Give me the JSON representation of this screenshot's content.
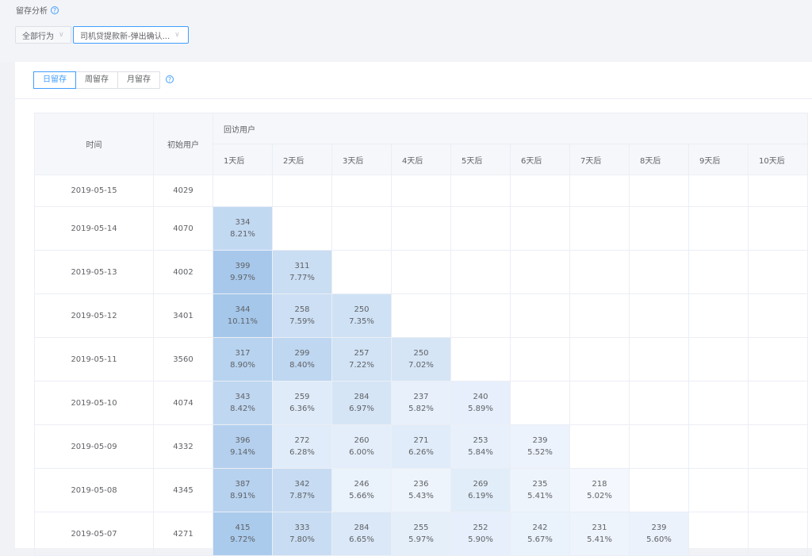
{
  "header": {
    "title": "留存分析"
  },
  "filters": {
    "behavior": "全部行为",
    "event": "司机贷提款新-弹出确认..."
  },
  "tabs": [
    {
      "label": "日留存",
      "active": true
    },
    {
      "label": "周留存",
      "active": false
    },
    {
      "label": "月留存",
      "active": false
    }
  ],
  "table": {
    "col_time": "时间",
    "col_initial": "初始用户",
    "col_returning": "回访用户",
    "days": [
      "1天后",
      "2天后",
      "3天后",
      "4天后",
      "5天后",
      "6天后",
      "7天后",
      "8天后",
      "9天后",
      "10天后"
    ],
    "rows": [
      {
        "date": "2019-05-15",
        "initial": "4029",
        "cells": []
      },
      {
        "date": "2019-05-14",
        "initial": "4070",
        "cells": [
          {
            "count": "334",
            "pct": "8.21%"
          }
        ]
      },
      {
        "date": "2019-05-13",
        "initial": "4002",
        "cells": [
          {
            "count": "399",
            "pct": "9.97%"
          },
          {
            "count": "311",
            "pct": "7.77%"
          }
        ]
      },
      {
        "date": "2019-05-12",
        "initial": "3401",
        "cells": [
          {
            "count": "344",
            "pct": "10.11%"
          },
          {
            "count": "258",
            "pct": "7.59%"
          },
          {
            "count": "250",
            "pct": "7.35%"
          }
        ]
      },
      {
        "date": "2019-05-11",
        "initial": "3560",
        "cells": [
          {
            "count": "317",
            "pct": "8.90%"
          },
          {
            "count": "299",
            "pct": "8.40%"
          },
          {
            "count": "257",
            "pct": "7.22%"
          },
          {
            "count": "250",
            "pct": "7.02%"
          }
        ]
      },
      {
        "date": "2019-05-10",
        "initial": "4074",
        "cells": [
          {
            "count": "343",
            "pct": "8.42%"
          },
          {
            "count": "259",
            "pct": "6.36%"
          },
          {
            "count": "284",
            "pct": "6.97%"
          },
          {
            "count": "237",
            "pct": "5.82%"
          },
          {
            "count": "240",
            "pct": "5.89%"
          }
        ]
      },
      {
        "date": "2019-05-09",
        "initial": "4332",
        "cells": [
          {
            "count": "396",
            "pct": "9.14%"
          },
          {
            "count": "272",
            "pct": "6.28%"
          },
          {
            "count": "260",
            "pct": "6.00%"
          },
          {
            "count": "271",
            "pct": "6.26%"
          },
          {
            "count": "253",
            "pct": "5.84%"
          },
          {
            "count": "239",
            "pct": "5.52%"
          }
        ]
      },
      {
        "date": "2019-05-08",
        "initial": "4345",
        "cells": [
          {
            "count": "387",
            "pct": "8.91%"
          },
          {
            "count": "342",
            "pct": "7.87%"
          },
          {
            "count": "246",
            "pct": "5.66%"
          },
          {
            "count": "236",
            "pct": "5.43%"
          },
          {
            "count": "269",
            "pct": "6.19%"
          },
          {
            "count": "235",
            "pct": "5.41%"
          },
          {
            "count": "218",
            "pct": "5.02%"
          }
        ]
      },
      {
        "date": "2019-05-07",
        "initial": "4271",
        "cells": [
          {
            "count": "415",
            "pct": "9.72%"
          },
          {
            "count": "333",
            "pct": "7.80%"
          },
          {
            "count": "284",
            "pct": "6.65%"
          },
          {
            "count": "255",
            "pct": "5.97%"
          },
          {
            "count": "252",
            "pct": "5.90%"
          },
          {
            "count": "242",
            "pct": "5.67%"
          },
          {
            "count": "231",
            "pct": "5.41%"
          },
          {
            "count": "239",
            "pct": "5.60%"
          }
        ]
      }
    ]
  },
  "colors": {
    "accent": "#409eff",
    "heat_low": "#f4f8fe",
    "heat_high": "#a3c6ea"
  }
}
